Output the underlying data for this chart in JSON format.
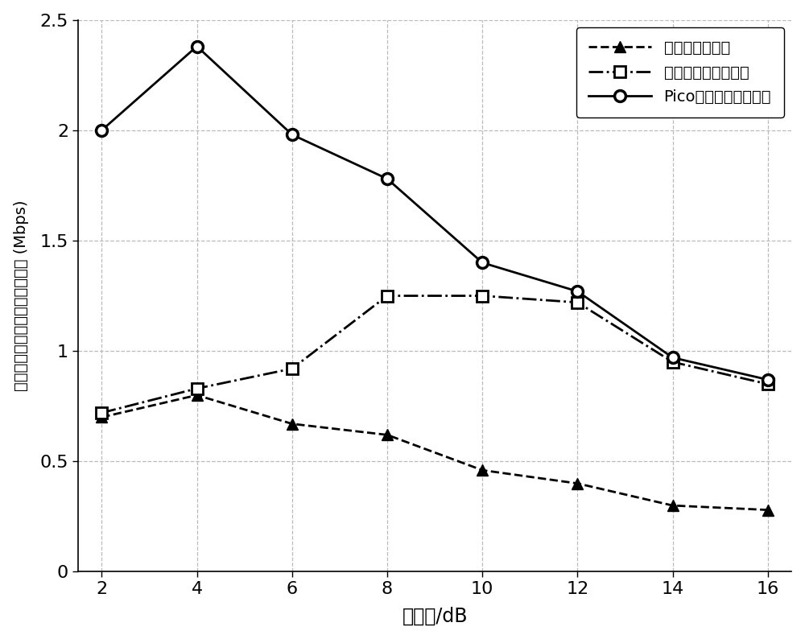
{
  "x": [
    2,
    4,
    6,
    8,
    10,
    12,
    14,
    16
  ],
  "series1_label": "无干扰管理方法",
  "series1_y": [
    0.7,
    0.8,
    0.67,
    0.62,
    0.46,
    0.4,
    0.3,
    0.28
  ],
  "series2_label": "宏基站功率降低方法",
  "series2_y": [
    0.72,
    0.83,
    0.92,
    1.25,
    1.25,
    1.22,
    0.95,
    0.85
  ],
  "series3_label": "Pico基站功率提高方法",
  "series3_y": [
    2.0,
    2.38,
    1.98,
    1.78,
    1.4,
    1.27,
    0.97,
    0.87
  ],
  "xlabel": "偏置值/dB",
  "ylabel": "小区范围扩展用户的平均吸吐量 (Mbps)",
  "xlim": [
    1.5,
    16.5
  ],
  "ylim": [
    0,
    2.5
  ],
  "yticks": [
    0,
    0.5,
    1.0,
    1.5,
    2.0,
    2.5
  ],
  "xticks": [
    2,
    4,
    6,
    8,
    10,
    12,
    14,
    16
  ],
  "grid_color": "#bbbbbb",
  "background_color": "#ffffff",
  "markersize": 10,
  "linewidth": 2.0
}
